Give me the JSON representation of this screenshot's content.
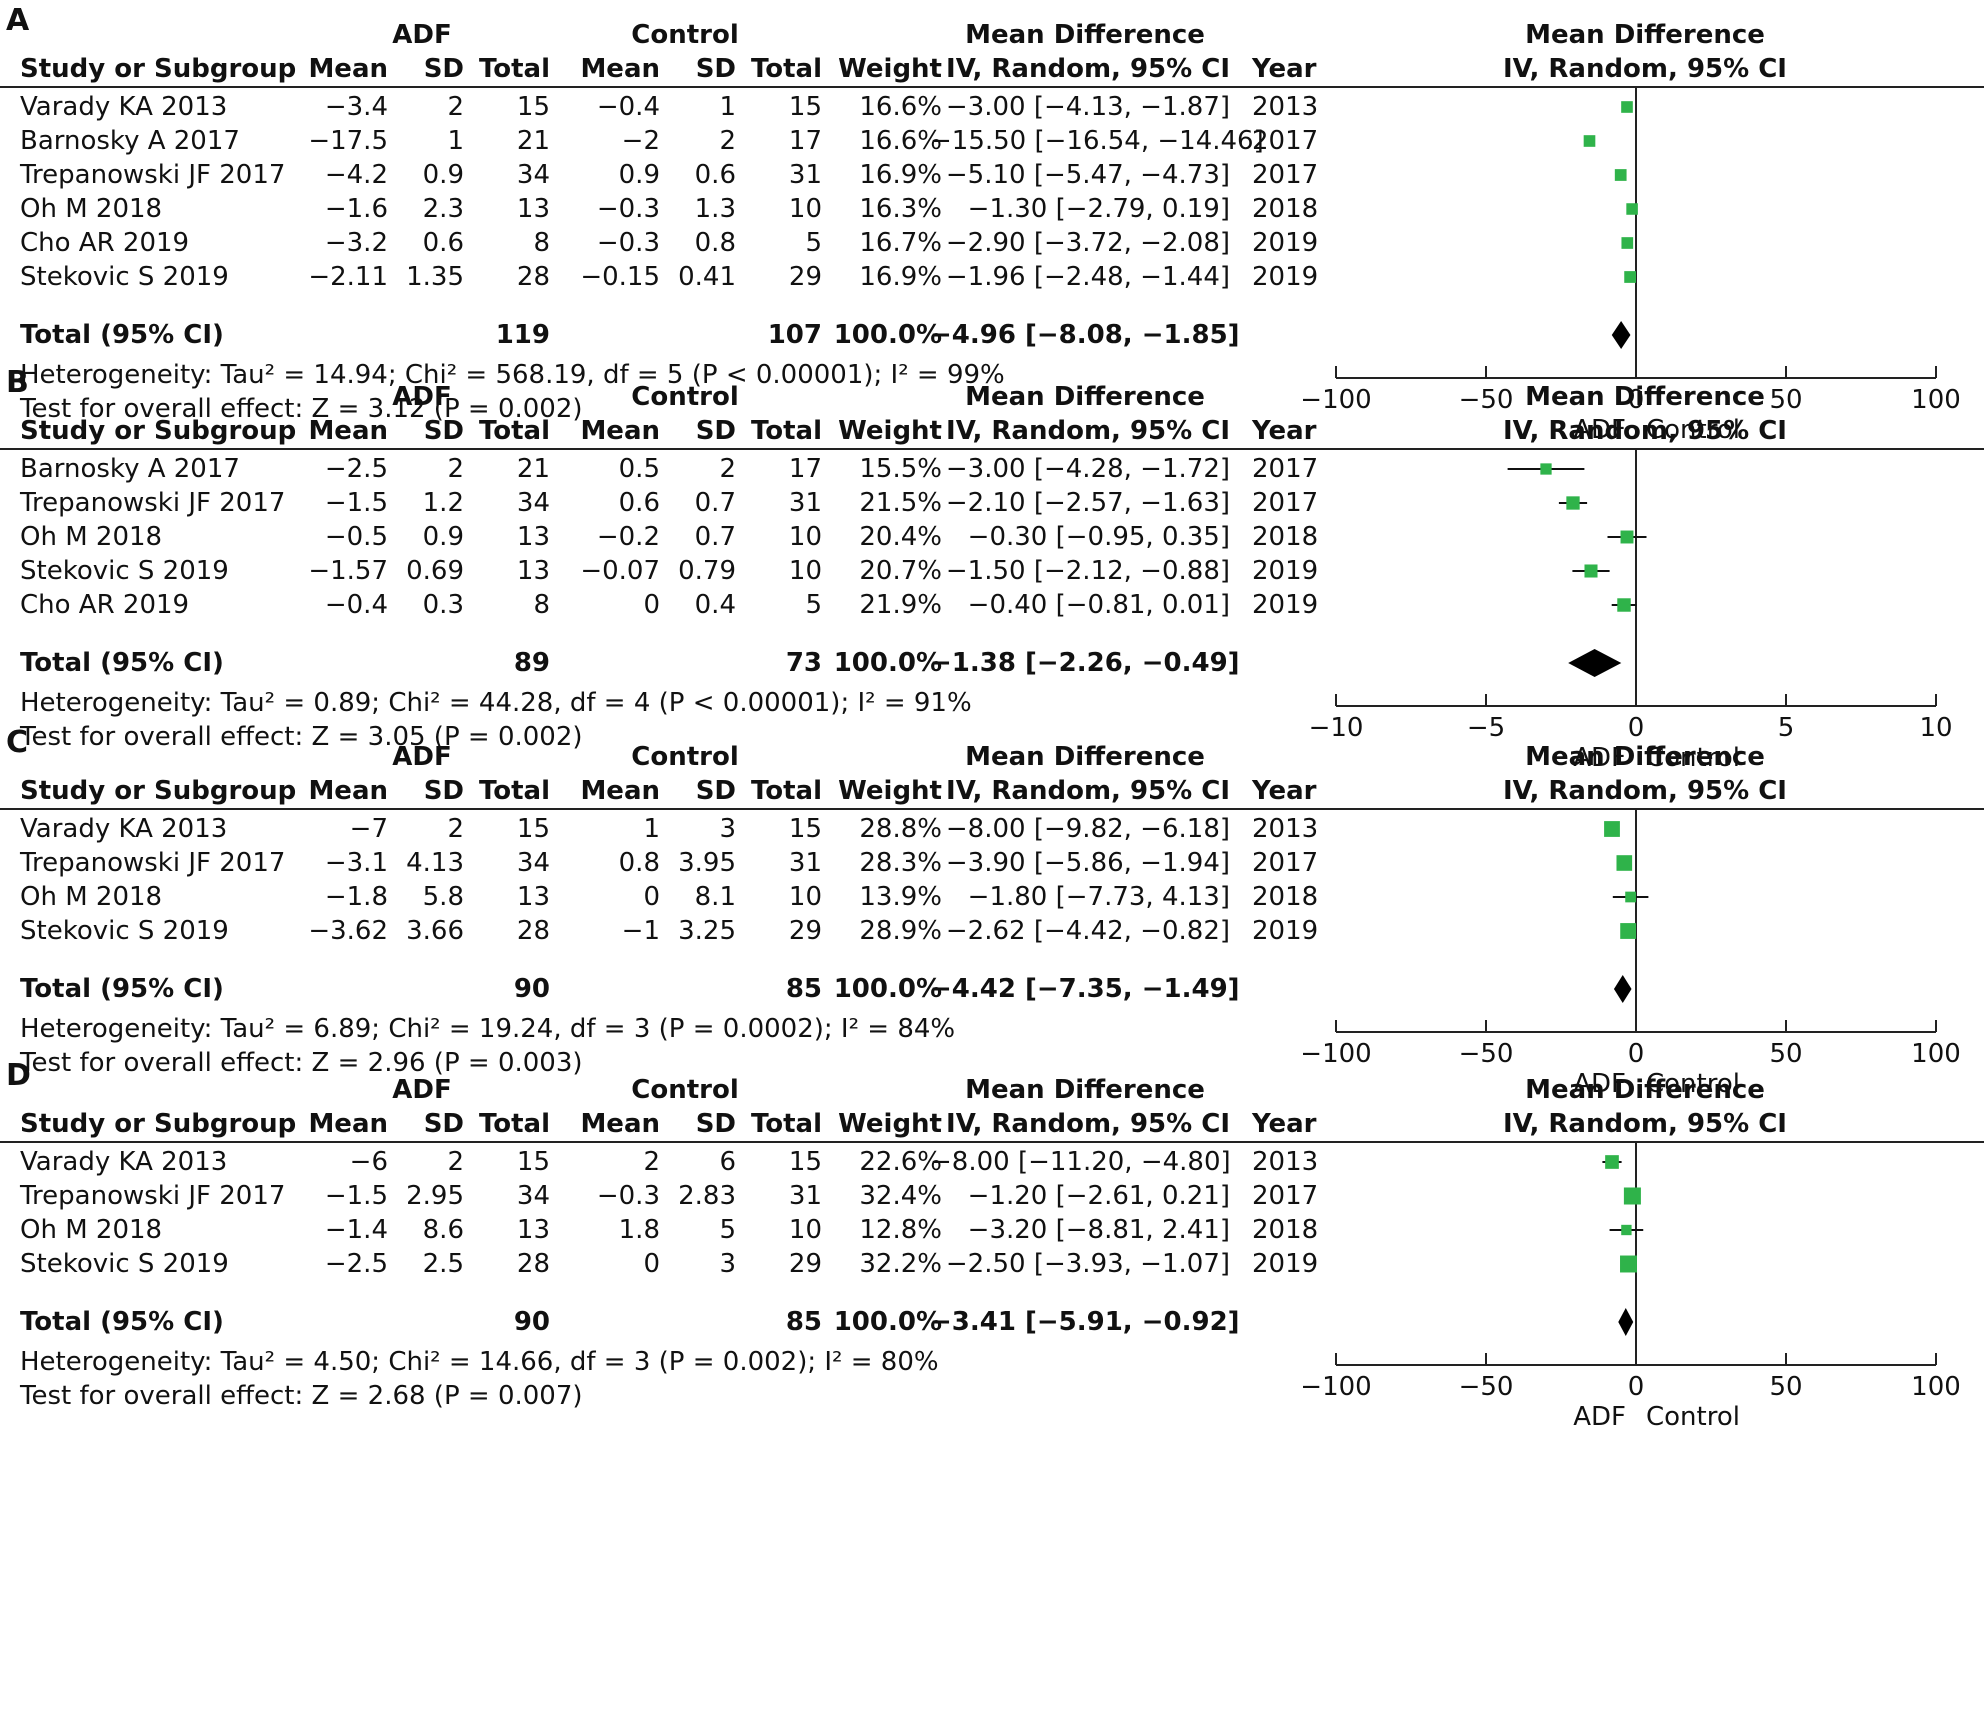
{
  "headers": {
    "study": "Study or Subgroup",
    "mean": "Mean",
    "sd": "SD",
    "total": "Total",
    "weight": "Weight",
    "md_line1": "Mean Difference",
    "md_line2": "IV, Random, 95% CI",
    "year": "Year",
    "adf": "ADF",
    "control": "Control",
    "favours_left": "ADF",
    "favours_right": "Control"
  },
  "colors": {
    "marker": "#2fb34a",
    "diamond": "#000000",
    "rule": "#222222"
  },
  "panels": [
    {
      "letter": "A",
      "studies": [
        {
          "name": "Varady KA 2013",
          "adf_mean": "−3.4",
          "adf_sd": "2",
          "adf_total": "15",
          "ctl_mean": "−0.4",
          "ctl_sd": "1",
          "ctl_total": "15",
          "weight": "16.6%",
          "ci_text": "−3.00 [−4.13, −1.87]",
          "year": "2013"
        },
        {
          "name": "Barnosky A 2017",
          "adf_mean": "−17.5",
          "adf_sd": "1",
          "adf_total": "21",
          "ctl_mean": "−2",
          "ctl_sd": "2",
          "ctl_total": "17",
          "weight": "16.6%",
          "ci_text": "−15.50 [−16.54, −14.46]",
          "year": "2017"
        },
        {
          "name": "Trepanowski JF 2017",
          "adf_mean": "−4.2",
          "adf_sd": "0.9",
          "adf_total": "34",
          "ctl_mean": "0.9",
          "ctl_sd": "0.6",
          "ctl_total": "31",
          "weight": "16.9%",
          "ci_text": "−5.10 [−5.47, −4.73]",
          "year": "2017"
        },
        {
          "name": "Oh M 2018",
          "adf_mean": "−1.6",
          "adf_sd": "2.3",
          "adf_total": "13",
          "ctl_mean": "−0.3",
          "ctl_sd": "1.3",
          "ctl_total": "10",
          "weight": "16.3%",
          "ci_text": "−1.30 [−2.79, 0.19]",
          "year": "2018"
        },
        {
          "name": "Cho AR 2019",
          "adf_mean": "−3.2",
          "adf_sd": "0.6",
          "adf_total": "8",
          "ctl_mean": "−0.3",
          "ctl_sd": "0.8",
          "ctl_total": "5",
          "weight": "16.7%",
          "ci_text": "−2.90 [−3.72, −2.08]",
          "year": "2019"
        },
        {
          "name": "Stekovic S 2019",
          "adf_mean": "−2.11",
          "adf_sd": "1.35",
          "adf_total": "28",
          "ctl_mean": "−0.15",
          "ctl_sd": "0.41",
          "ctl_total": "29",
          "weight": "16.9%",
          "ci_text": "−1.96 [−2.48, −1.44]",
          "year": "2019"
        }
      ],
      "total": {
        "label": "Total (95% CI)",
        "adf_total": "119",
        "ctl_total": "107",
        "weight": "100.0%",
        "ci_text": "−4.96 [−8.08, −1.85]"
      },
      "heterogeneity": "Heterogeneity: Tau² = 14.94; Chi² = 568.19, df = 5 (P < 0.00001); I² = 99%",
      "overall": "Test for overall effect: Z = 3.12 (P = 0.002)"
    },
    {
      "letter": "B",
      "studies": [
        {
          "name": "Barnosky A 2017",
          "adf_mean": "−2.5",
          "adf_sd": "2",
          "adf_total": "21",
          "ctl_mean": "0.5",
          "ctl_sd": "2",
          "ctl_total": "17",
          "weight": "15.5%",
          "ci_text": "−3.00 [−4.28, −1.72]",
          "year": "2017"
        },
        {
          "name": "Trepanowski JF 2017",
          "adf_mean": "−1.5",
          "adf_sd": "1.2",
          "adf_total": "34",
          "ctl_mean": "0.6",
          "ctl_sd": "0.7",
          "ctl_total": "31",
          "weight": "21.5%",
          "ci_text": "−2.10 [−2.57, −1.63]",
          "year": "2017"
        },
        {
          "name": "Oh M 2018",
          "adf_mean": "−0.5",
          "adf_sd": "0.9",
          "adf_total": "13",
          "ctl_mean": "−0.2",
          "ctl_sd": "0.7",
          "ctl_total": "10",
          "weight": "20.4%",
          "ci_text": "−0.30 [−0.95, 0.35]",
          "year": "2018"
        },
        {
          "name": "Stekovic S 2019",
          "adf_mean": "−1.57",
          "adf_sd": "0.69",
          "adf_total": "13",
          "ctl_mean": "−0.07",
          "ctl_sd": "0.79",
          "ctl_total": "10",
          "weight": "20.7%",
          "ci_text": "−1.50 [−2.12, −0.88]",
          "year": "2019"
        },
        {
          "name": "Cho AR 2019",
          "adf_mean": "−0.4",
          "adf_sd": "0.3",
          "adf_total": "8",
          "ctl_mean": "0",
          "ctl_sd": "0.4",
          "ctl_total": "5",
          "weight": "21.9%",
          "ci_text": "−0.40 [−0.81, 0.01]",
          "year": "2019"
        }
      ],
      "total": {
        "label": "Total (95% CI)",
        "adf_total": "89",
        "ctl_total": "73",
        "weight": "100.0%",
        "ci_text": "−1.38 [−2.26, −0.49]"
      },
      "heterogeneity": "Heterogeneity: Tau² = 0.89; Chi² = 44.28, df = 4 (P < 0.00001); I² = 91%",
      "overall": "Test for overall effect: Z = 3.05 (P = 0.002)"
    },
    {
      "letter": "C",
      "studies": [
        {
          "name": "Varady KA 2013",
          "adf_mean": "−7",
          "adf_sd": "2",
          "adf_total": "15",
          "ctl_mean": "1",
          "ctl_sd": "3",
          "ctl_total": "15",
          "weight": "28.8%",
          "ci_text": "−8.00 [−9.82, −6.18]",
          "year": "2013"
        },
        {
          "name": "Trepanowski JF 2017",
          "adf_mean": "−3.1",
          "adf_sd": "4.13",
          "adf_total": "34",
          "ctl_mean": "0.8",
          "ctl_sd": "3.95",
          "ctl_total": "31",
          "weight": "28.3%",
          "ci_text": "−3.90 [−5.86, −1.94]",
          "year": "2017"
        },
        {
          "name": "Oh M 2018",
          "adf_mean": "−1.8",
          "adf_sd": "5.8",
          "adf_total": "13",
          "ctl_mean": "0",
          "ctl_sd": "8.1",
          "ctl_total": "10",
          "weight": "13.9%",
          "ci_text": "−1.80 [−7.73, 4.13]",
          "year": "2018"
        },
        {
          "name": "Stekovic S 2019",
          "adf_mean": "−3.62",
          "adf_sd": "3.66",
          "adf_total": "28",
          "ctl_mean": "−1",
          "ctl_sd": "3.25",
          "ctl_total": "29",
          "weight": "28.9%",
          "ci_text": "−2.62 [−4.42, −0.82]",
          "year": "2019"
        }
      ],
      "total": {
        "label": "Total (95% CI)",
        "adf_total": "90",
        "ctl_total": "85",
        "weight": "100.0%",
        "ci_text": "−4.42 [−7.35, −1.49]"
      },
      "heterogeneity": "Heterogeneity: Tau² = 6.89; Chi² = 19.24, df = 3 (P = 0.0002); I² = 84%",
      "overall": "Test for overall effect: Z = 2.96 (P = 0.003)"
    },
    {
      "letter": "D",
      "studies": [
        {
          "name": "Varady KA 2013",
          "adf_mean": "−6",
          "adf_sd": "2",
          "adf_total": "15",
          "ctl_mean": "2",
          "ctl_sd": "6",
          "ctl_total": "15",
          "weight": "22.6%",
          "ci_text": "−8.00 [−11.20, −4.80]",
          "year": "2013"
        },
        {
          "name": "Trepanowski JF 2017",
          "adf_mean": "−1.5",
          "adf_sd": "2.95",
          "adf_total": "34",
          "ctl_mean": "−0.3",
          "ctl_sd": "2.83",
          "ctl_total": "31",
          "weight": "32.4%",
          "ci_text": "−1.20 [−2.61, 0.21]",
          "year": "2017"
        },
        {
          "name": "Oh M 2018",
          "adf_mean": "−1.4",
          "adf_sd": "8.6",
          "adf_total": "13",
          "ctl_mean": "1.8",
          "ctl_sd": "5",
          "ctl_total": "10",
          "weight": "12.8%",
          "ci_text": "−3.20 [−8.81, 2.41]",
          "year": "2018"
        },
        {
          "name": "Stekovic S 2019",
          "adf_mean": "−2.5",
          "adf_sd": "2.5",
          "adf_total": "28",
          "ctl_mean": "0",
          "ctl_sd": "3",
          "ctl_total": "29",
          "weight": "32.2%",
          "ci_text": "−2.50 [−3.93, −1.07]",
          "year": "2019"
        }
      ],
      "total": {
        "label": "Total (95% CI)",
        "adf_total": "90",
        "ctl_total": "85",
        "weight": "100.0%",
        "ci_text": "−3.41 [−5.91, −0.92]"
      },
      "heterogeneity": "Heterogeneity: Tau² = 4.50; Chi² = 14.66, df = 3 (P = 0.002); I² = 80%",
      "overall": "Test for overall effect: Z = 2.68 (P = 0.007)"
    }
  ],
  "chart_data": [
    {
      "type": "forest",
      "panel": "A",
      "title": "Mean Difference IV, Random, 95% CI",
      "xlim": [
        -100,
        100
      ],
      "ticks": [
        -100,
        -50,
        0,
        50,
        100
      ],
      "tick_labels": [
        "−100",
        "−50",
        "0",
        "50",
        "100"
      ],
      "studies": [
        {
          "name": "Varady KA 2013",
          "md": -3.0,
          "lo": -4.13,
          "hi": -1.87,
          "weight": 16.6
        },
        {
          "name": "Barnosky A 2017",
          "md": -15.5,
          "lo": -16.54,
          "hi": -14.46,
          "weight": 16.6
        },
        {
          "name": "Trepanowski JF 2017",
          "md": -5.1,
          "lo": -5.47,
          "hi": -4.73,
          "weight": 16.9
        },
        {
          "name": "Oh M 2018",
          "md": -1.3,
          "lo": -2.79,
          "hi": 0.19,
          "weight": 16.3
        },
        {
          "name": "Cho AR 2019",
          "md": -2.9,
          "lo": -3.72,
          "hi": -2.08,
          "weight": 16.7
        },
        {
          "name": "Stekovic S 2019",
          "md": -1.96,
          "lo": -2.48,
          "hi": -1.44,
          "weight": 16.9
        }
      ],
      "total": {
        "md": -4.96,
        "lo": -8.08,
        "hi": -1.85
      }
    },
    {
      "type": "forest",
      "panel": "B",
      "title": "Mean Difference IV, Random, 95% CI",
      "xlim": [
        -10,
        10
      ],
      "ticks": [
        -10,
        -5,
        0,
        5,
        10
      ],
      "tick_labels": [
        "−10",
        "−5",
        "0",
        "5",
        "10"
      ],
      "studies": [
        {
          "name": "Barnosky A 2017",
          "md": -3.0,
          "lo": -4.28,
          "hi": -1.72,
          "weight": 15.5
        },
        {
          "name": "Trepanowski JF 2017",
          "md": -2.1,
          "lo": -2.57,
          "hi": -1.63,
          "weight": 21.5
        },
        {
          "name": "Oh M 2018",
          "md": -0.3,
          "lo": -0.95,
          "hi": 0.35,
          "weight": 20.4
        },
        {
          "name": "Stekovic S 2019",
          "md": -1.5,
          "lo": -2.12,
          "hi": -0.88,
          "weight": 20.7
        },
        {
          "name": "Cho AR 2019",
          "md": -0.4,
          "lo": -0.81,
          "hi": 0.01,
          "weight": 21.9
        }
      ],
      "total": {
        "md": -1.38,
        "lo": -2.26,
        "hi": -0.49
      }
    },
    {
      "type": "forest",
      "panel": "C",
      "title": "Mean Difference IV, Random, 95% CI",
      "xlim": [
        -100,
        100
      ],
      "ticks": [
        -100,
        -50,
        0,
        50,
        100
      ],
      "tick_labels": [
        "−100",
        "−50",
        "0",
        "50",
        "100"
      ],
      "studies": [
        {
          "name": "Varady KA 2013",
          "md": -8.0,
          "lo": -9.82,
          "hi": -6.18,
          "weight": 28.8
        },
        {
          "name": "Trepanowski JF 2017",
          "md": -3.9,
          "lo": -5.86,
          "hi": -1.94,
          "weight": 28.3
        },
        {
          "name": "Oh M 2018",
          "md": -1.8,
          "lo": -7.73,
          "hi": 4.13,
          "weight": 13.9
        },
        {
          "name": "Stekovic S 2019",
          "md": -2.62,
          "lo": -4.42,
          "hi": -0.82,
          "weight": 28.9
        }
      ],
      "total": {
        "md": -4.42,
        "lo": -7.35,
        "hi": -1.49
      }
    },
    {
      "type": "forest",
      "panel": "D",
      "title": "Mean Difference IV, Random, 95% CI",
      "xlim": [
        -100,
        100
      ],
      "ticks": [
        -100,
        -50,
        0,
        50,
        100
      ],
      "tick_labels": [
        "−100",
        "−50",
        "0",
        "50",
        "100"
      ],
      "studies": [
        {
          "name": "Varady KA 2013",
          "md": -8.0,
          "lo": -11.2,
          "hi": -4.8,
          "weight": 22.6
        },
        {
          "name": "Trepanowski JF 2017",
          "md": -1.2,
          "lo": -2.61,
          "hi": 0.21,
          "weight": 32.4
        },
        {
          "name": "Oh M 2018",
          "md": -3.2,
          "lo": -8.81,
          "hi": 2.41,
          "weight": 12.8
        },
        {
          "name": "Stekovic S 2019",
          "md": -2.5,
          "lo": -3.93,
          "hi": -1.07,
          "weight": 32.2
        }
      ],
      "total": {
        "md": -3.41,
        "lo": -5.91,
        "hi": -0.92
      }
    }
  ]
}
